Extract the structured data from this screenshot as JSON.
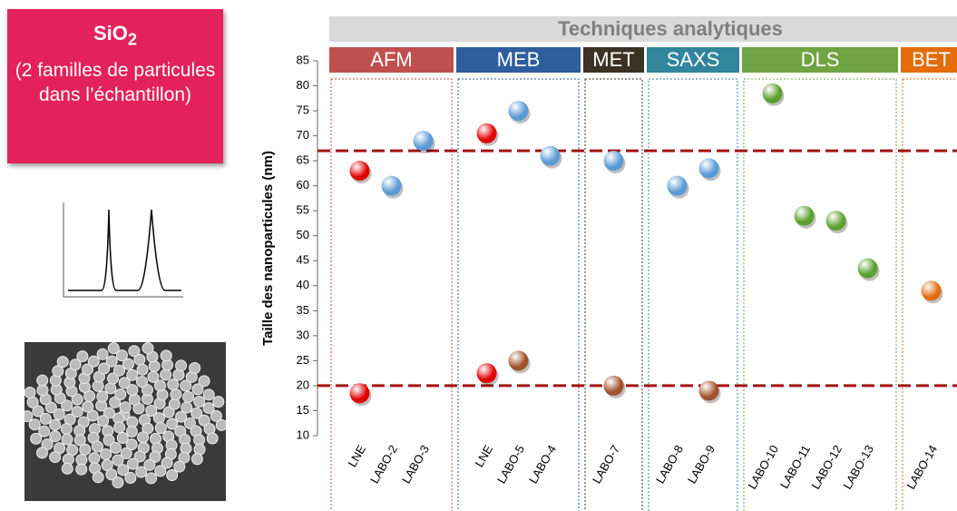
{
  "sidebar": {
    "title": "SiO",
    "title_sub": "2",
    "text": "(2 familles de particules dans l’échantillon)"
  },
  "chart_data": {
    "type": "scatter",
    "title": "Techniques analytiques",
    "y_label": "Taille des nanoparticules (nm)",
    "groups": [
      {
        "label": "AFM",
        "color": "#c0504d",
        "categories": [
          "LNE",
          "LABO-2",
          "LABO-3"
        ]
      },
      {
        "label": "MEB",
        "color": "#2e5e9e",
        "categories": [
          "LNE",
          "LABO-5",
          "LABO-4"
        ]
      },
      {
        "label": "MET",
        "color": "#3b3225",
        "categories": [
          "LABO-7"
        ]
      },
      {
        "label": "SAXS",
        "color": "#31869b",
        "categories": [
          "LABO-8",
          "LABO-9"
        ]
      },
      {
        "label": "DLS",
        "color": "#70a442",
        "categories": [
          "LABO-10",
          "LABO-11",
          "LABO-12",
          "LABO-13"
        ]
      },
      {
        "label": "BET",
        "color": "#e46c0a",
        "categories": [
          "LABO-14"
        ]
      }
    ],
    "series": [
      {
        "color": "#e00000",
        "values": [
          63,
          null,
          null,
          70.5,
          null,
          null,
          null,
          null,
          null,
          null,
          null,
          null,
          null,
          null
        ]
      },
      {
        "color": "#e00000",
        "values": [
          18.5,
          null,
          null,
          22.5,
          null,
          null,
          null,
          null,
          null,
          null,
          null,
          null,
          null,
          null
        ]
      },
      {
        "color": "#5b9bd5",
        "values": [
          null,
          60,
          69,
          null,
          75,
          66,
          65,
          60,
          63.5,
          null,
          null,
          null,
          null,
          null
        ]
      },
      {
        "color": "#a0522d",
        "values": [
          null,
          null,
          null,
          null,
          25,
          null,
          20,
          null,
          19,
          null,
          null,
          null,
          null,
          null
        ]
      },
      {
        "color": "#5aa02c",
        "values": [
          null,
          null,
          null,
          null,
          null,
          null,
          null,
          null,
          null,
          78.5,
          54,
          53,
          43.5,
          null
        ]
      },
      {
        "color": "#e46c0a",
        "values": [
          null,
          null,
          null,
          null,
          null,
          null,
          null,
          null,
          null,
          null,
          null,
          null,
          null,
          39
        ]
      }
    ],
    "reference_lines": [
      67,
      20
    ],
    "ylim": [
      10,
      85
    ],
    "yticks": [
      10,
      15,
      20,
      25,
      30,
      35,
      40,
      45,
      50,
      55,
      60,
      65,
      70,
      75,
      80,
      85
    ]
  }
}
